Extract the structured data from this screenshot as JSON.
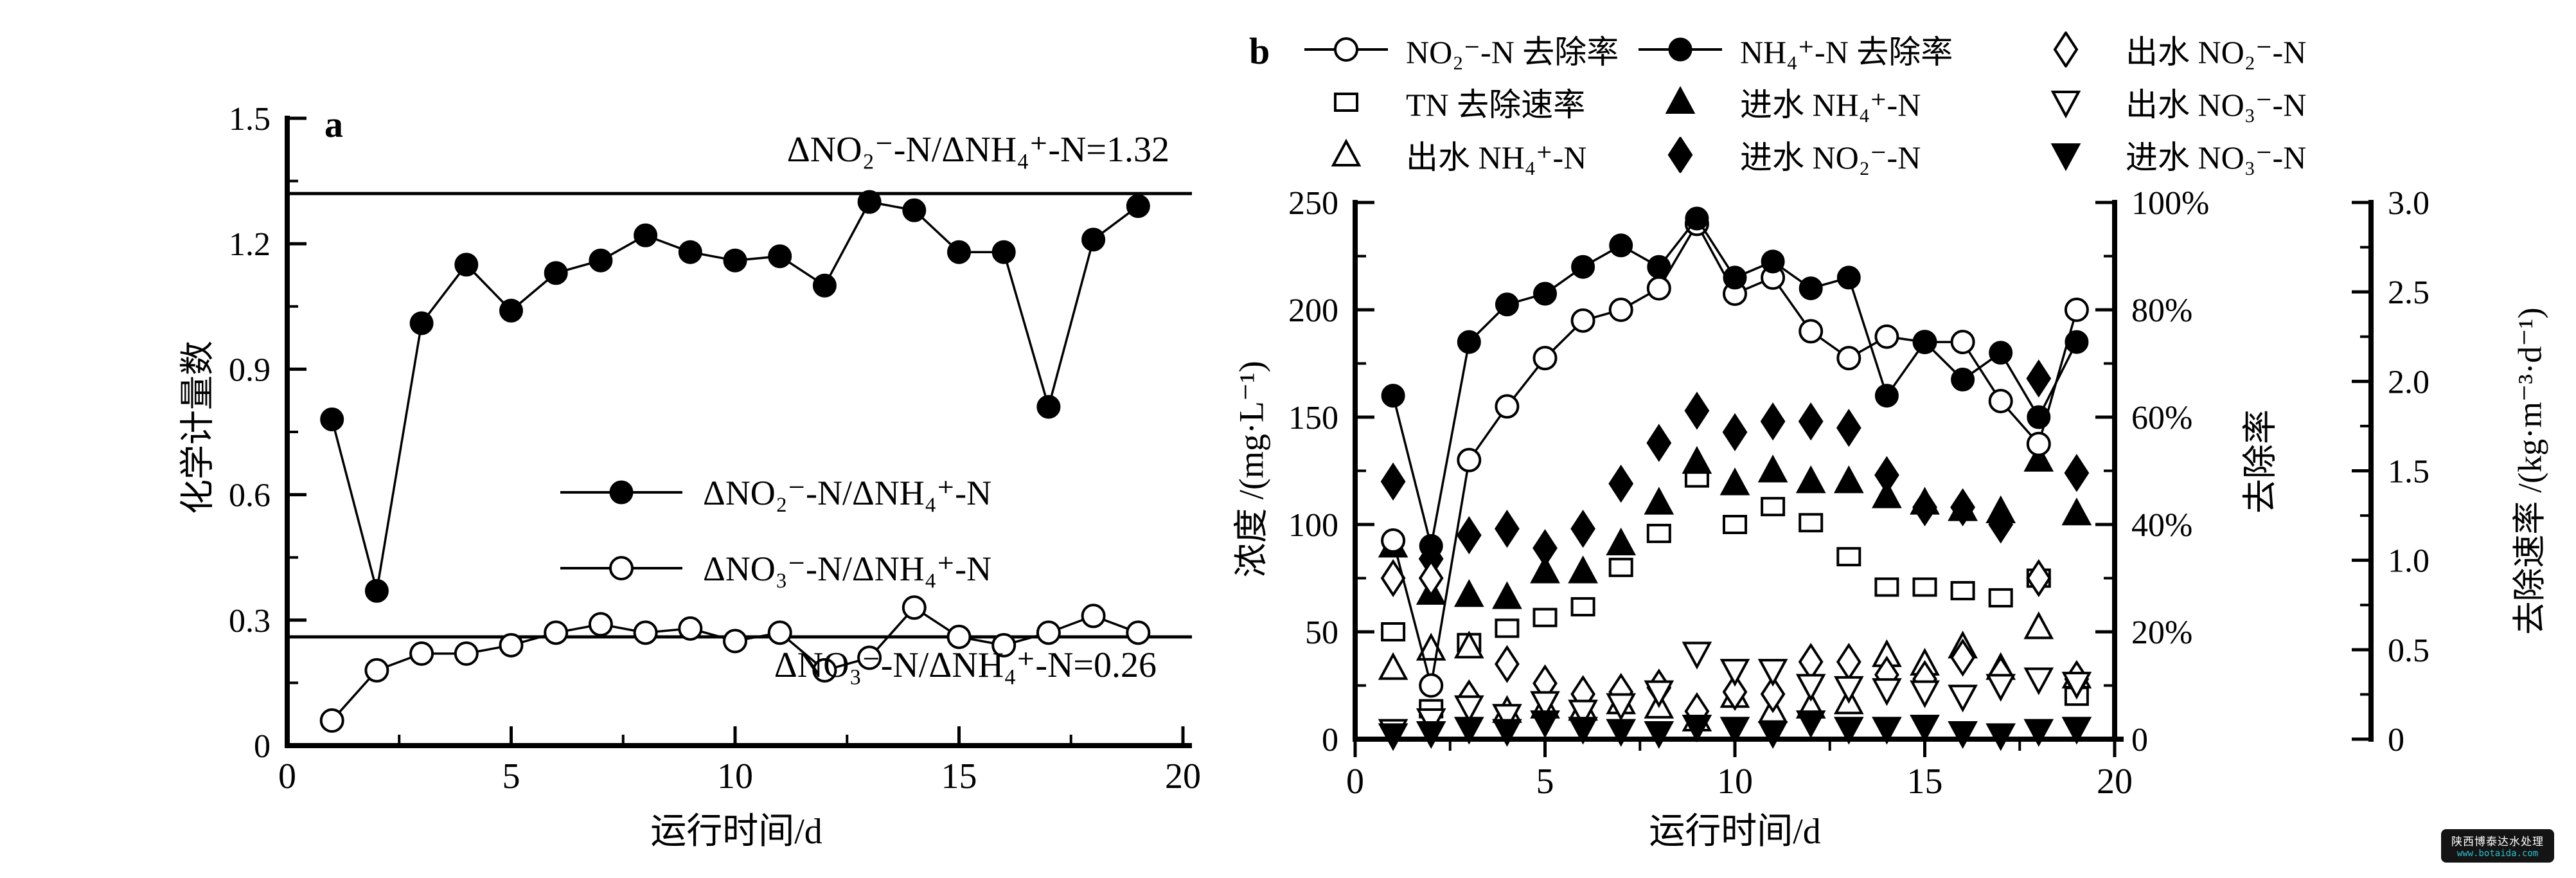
{
  "page": {
    "background": "#ffffff",
    "ink": "#000000"
  },
  "panel_a": {
    "letter": "a",
    "x_label": "运行时间/d",
    "y_label": "化学计量数"
  },
  "panel_b": {
    "letter": "b",
    "x_label": "运行时间/d",
    "y_label_left": "浓度 /(mg·L⁻¹)",
    "y_label_right": "去除率",
    "y_label_far_right": "去除速率 /(kg·m⁻³·d⁻¹)"
  },
  "watermark": {
    "line1": "陕西博泰达水处理",
    "line2": "www.botaida.com",
    "bg_color": "#141414",
    "text_color": "#ffffff",
    "link_color": "#2bc0cd"
  },
  "chart_data": [
    {
      "type": "line",
      "panel": "a",
      "x_label": "运行时间/d",
      "y_label": "化学计量数",
      "x": [
        1,
        2,
        3,
        4,
        5,
        6,
        7,
        8,
        9,
        10,
        11,
        12,
        13,
        14,
        15,
        16,
        17,
        18,
        19
      ],
      "xlim": [
        0,
        20
      ],
      "ylim": [
        0,
        1.5
      ],
      "x_ticks": [
        0,
        5,
        10,
        15,
        20
      ],
      "x_minor_step": 2.5,
      "y_ticks": [
        "0",
        "0.3",
        "0.6",
        "0.9",
        "1.2",
        "1.5"
      ],
      "y_tick_values": [
        0,
        0.3,
        0.6,
        0.9,
        1.2,
        1.5
      ],
      "y_minor_step": 0.15,
      "grid": false,
      "reference_lines": [
        {
          "value": 1.32,
          "label": "ΔNO₂⁻-N/ΔNH₄⁺-N=1.32"
        },
        {
          "value": 0.26,
          "label": "ΔNO₃⁻-N/ΔNH₄⁺-N=0.26"
        }
      ],
      "series": [
        {
          "name": "ΔNO₂⁻-N/ΔNH₄⁺-N",
          "marker": "circle-filled",
          "line": true,
          "values": [
            0.78,
            0.37,
            1.01,
            1.15,
            1.04,
            1.13,
            1.16,
            1.22,
            1.18,
            1.16,
            1.17,
            1.1,
            1.3,
            1.28,
            1.18,
            1.18,
            0.81,
            1.21,
            1.29
          ]
        },
        {
          "name": "ΔNO₃⁻-N/ΔNH₄⁺-N",
          "marker": "circle-open",
          "line": true,
          "values": [
            0.06,
            0.18,
            0.22,
            0.22,
            0.24,
            0.27,
            0.29,
            0.27,
            0.28,
            0.25,
            0.27,
            0.18,
            0.21,
            0.33,
            0.26,
            0.24,
            0.27,
            0.31,
            0.27
          ]
        }
      ]
    },
    {
      "type": "line+scatter",
      "panel": "b",
      "x_label": "运行时间/d",
      "x": [
        1,
        2,
        3,
        4,
        5,
        6,
        7,
        8,
        9,
        10,
        11,
        12,
        13,
        14,
        15,
        16,
        17,
        18,
        19
      ],
      "xlim": [
        0,
        20
      ],
      "x_ticks": [
        0,
        5,
        10,
        15,
        20
      ],
      "x_minor_step": 2.5,
      "left_axis": {
        "label": "浓度 /(mg·L⁻¹)",
        "lim": [
          0,
          250
        ],
        "ticks": [
          "0",
          "50",
          "100",
          "150",
          "200",
          "250"
        ],
        "tick_values": [
          0,
          50,
          100,
          150,
          200,
          250
        ],
        "minor_step": 25
      },
      "right_axis": {
        "label": "去除率",
        "lim": [
          0,
          100
        ],
        "ticks": [
          "0",
          "20%",
          "40%",
          "60%",
          "80%",
          "100%"
        ],
        "tick_values": [
          0,
          20,
          40,
          60,
          80,
          100
        ],
        "minor_step": 10
      },
      "far_right_axis": {
        "label": "去除速率 /(kg·m⁻³·d⁻¹)",
        "lim": [
          0,
          3
        ],
        "ticks": [
          "0",
          "0.5",
          "1.0",
          "1.5",
          "2.0",
          "2.5",
          "3.0"
        ],
        "tick_values": [
          0,
          0.5,
          1,
          1.5,
          2,
          2.5,
          3
        ],
        "minor_step": 0.25
      },
      "series": [
        {
          "name": "NO₂⁻-N 去除率",
          "axis": "right",
          "marker": "circle-open",
          "line": true,
          "values": [
            37,
            10,
            52,
            62,
            71,
            78,
            80,
            84,
            96,
            83,
            86,
            76,
            71,
            75,
            74,
            74,
            63,
            55,
            80
          ]
        },
        {
          "name": "NH₄⁺-N 去除率",
          "axis": "right",
          "marker": "circle-filled",
          "line": true,
          "values": [
            64,
            36,
            74,
            81,
            83,
            88,
            92,
            88,
            97,
            86,
            89,
            84,
            86,
            64,
            74,
            67,
            72,
            60,
            74
          ]
        },
        {
          "name": "TN 去除速率",
          "axis": "far_right",
          "marker": "square-open",
          "line": false,
          "values": [
            0.6,
            0.17,
            0.54,
            0.62,
            0.68,
            0.74,
            0.96,
            1.15,
            1.46,
            1.2,
            1.3,
            1.21,
            1.02,
            0.85,
            0.85,
            0.83,
            0.79,
            0.9,
            0.24
          ]
        },
        {
          "name": "进水 NH₄⁺-N",
          "axis": "left",
          "marker": "triangle-up-filled",
          "line": false,
          "values": [
            90,
            68,
            67,
            66,
            78,
            78,
            91,
            110,
            129,
            119,
            125,
            120,
            120,
            113,
            110,
            107,
            106,
            130,
            105
          ]
        },
        {
          "name": "出水 NH₄⁺-N",
          "axis": "left",
          "marker": "triangle-up-open",
          "line": false,
          "values": [
            33,
            42,
            43,
            13,
            15,
            14,
            17,
            15,
            9,
            20,
            13,
            15,
            17,
            39,
            35,
            43,
            33,
            52,
            29
          ]
        },
        {
          "name": "进水 NO₂⁻-N",
          "axis": "left",
          "marker": "diamond-filled",
          "line": false,
          "values": [
            120,
            84,
            95,
            98,
            89,
            98,
            119,
            138,
            153,
            143,
            148,
            148,
            145,
            123,
            108,
            108,
            100,
            168,
            124
          ]
        },
        {
          "name": "出水 NO₂⁻-N",
          "axis": "left",
          "marker": "diamond-open",
          "line": false,
          "values": [
            75,
            75,
            19,
            35,
            26,
            21,
            22,
            24,
            13,
            22,
            21,
            36,
            36,
            30,
            28,
            38,
            30,
            75,
            28
          ]
        },
        {
          "name": "出水 NO₃⁻-N",
          "axis": "left",
          "marker": "triangle-down-open",
          "line": false,
          "values": [
            4,
            9,
            15,
            11,
            17,
            13,
            16,
            22,
            40,
            32,
            32,
            25,
            24,
            23,
            22,
            20,
            25,
            28,
            26
          ]
        },
        {
          "name": "进水 NO₃⁻-N",
          "axis": "left",
          "marker": "triangle-down-filled",
          "line": false,
          "values": [
            2,
            3,
            5,
            4,
            8,
            5,
            4,
            3,
            6,
            5,
            3,
            8,
            5,
            5,
            6,
            3,
            2,
            4,
            5
          ]
        }
      ]
    }
  ]
}
